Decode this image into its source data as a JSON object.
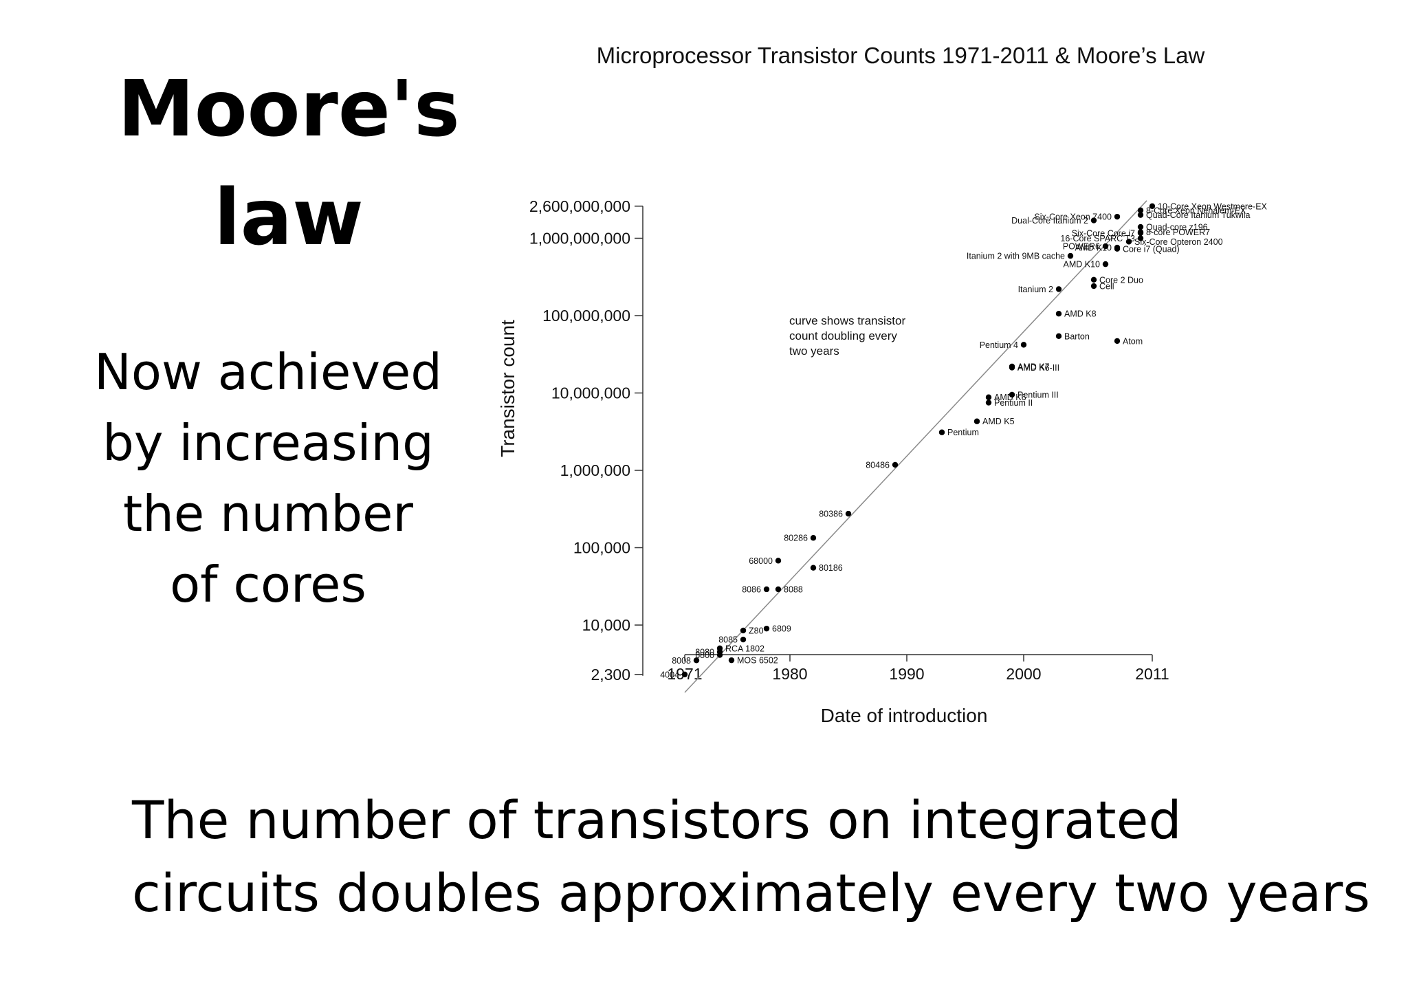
{
  "slide": {
    "title_line1": "Moore's",
    "title_line2": "law",
    "side_note_lines": [
      "Now achieved",
      "by increasing",
      "the number",
      "of cores"
    ],
    "bottom_lines": [
      "The number of transistors on integrated",
      "circuits doubles approximately every two years"
    ]
  },
  "colors": {
    "point": "#000000",
    "trend": "#8a8a8a",
    "axis": "#333333"
  },
  "chart_data": {
    "type": "scatter",
    "title": "Microprocessor Transistor Counts 1971-2011 & Moore’s Law",
    "xlabel": "Date of introduction",
    "ylabel": "Transistor count",
    "y_scale": "log",
    "xlim": [
      1971,
      2011
    ],
    "ylim": [
      1000,
      2600000000
    ],
    "x_ticks": [
      1971,
      1980,
      1990,
      2000,
      2011
    ],
    "y_ticks": [
      {
        "value": 2300,
        "label": "2,300"
      },
      {
        "value": 10000,
        "label": "10,000"
      },
      {
        "value": 100000,
        "label": "100,000"
      },
      {
        "value": 1000000,
        "label": "1,000,000"
      },
      {
        "value": 10000000,
        "label": "10,000,000"
      },
      {
        "value": 100000000,
        "label": "100,000,000"
      },
      {
        "value": 1000000000,
        "label": "1,000,000,000"
      },
      {
        "value": 2600000000,
        "label": "2,600,000,000"
      }
    ],
    "trend_line": {
      "x": [
        1971,
        2011
      ],
      "y": [
        1650,
        2600000000
      ]
    },
    "annotation": [
      "curve shows transistor",
      "count doubling every",
      "two years"
    ],
    "points": [
      {
        "name": "4004",
        "x": 1971,
        "y": 2300,
        "label_side": "left"
      },
      {
        "name": "8008",
        "x": 1972,
        "y": 3500,
        "label_side": "left"
      },
      {
        "name": "8080",
        "x": 1974,
        "y": 4500,
        "label_side": "left"
      },
      {
        "name": "RCA 1802",
        "x": 1974,
        "y": 5000,
        "label_side": "right"
      },
      {
        "name": "6800",
        "x": 1974,
        "y": 4100,
        "label_side": "left"
      },
      {
        "name": "8085",
        "x": 1976,
        "y": 6500,
        "label_side": "left"
      },
      {
        "name": "MOS 6502",
        "x": 1975,
        "y": 3510,
        "label_side": "right"
      },
      {
        "name": "Z80",
        "x": 1976,
        "y": 8500,
        "label_side": "right"
      },
      {
        "name": "6809",
        "x": 1978,
        "y": 9000,
        "label_side": "right"
      },
      {
        "name": "8086",
        "x": 1978,
        "y": 29000,
        "label_side": "left"
      },
      {
        "name": "8088",
        "x": 1979,
        "y": 29000,
        "label_side": "right"
      },
      {
        "name": "68000",
        "x": 1979,
        "y": 68000,
        "label_side": "left"
      },
      {
        "name": "80186",
        "x": 1982,
        "y": 55000,
        "label_side": "right"
      },
      {
        "name": "80286",
        "x": 1982,
        "y": 134000,
        "label_side": "left"
      },
      {
        "name": "80386",
        "x": 1985,
        "y": 275000,
        "label_side": "left"
      },
      {
        "name": "80486",
        "x": 1989,
        "y": 1180000,
        "label_side": "left"
      },
      {
        "name": "Pentium",
        "x": 1993,
        "y": 3100000,
        "label_side": "right"
      },
      {
        "name": "AMD K5",
        "x": 1996,
        "y": 4300000,
        "label_side": "right"
      },
      {
        "name": "Pentium II",
        "x": 1997,
        "y": 7500000,
        "label_side": "right"
      },
      {
        "name": "AMD K6",
        "x": 1997,
        "y": 8800000,
        "label_side": "right"
      },
      {
        "name": "Pentium III",
        "x": 1999,
        "y": 9500000,
        "label_side": "right"
      },
      {
        "name": "AMD K6-III",
        "x": 1999,
        "y": 21300000,
        "label_side": "right"
      },
      {
        "name": "AMD K7",
        "x": 1999,
        "y": 22000000,
        "label_side": "right"
      },
      {
        "name": "Pentium 4",
        "x": 2000,
        "y": 42000000,
        "label_side": "left"
      },
      {
        "name": "Barton",
        "x": 2003,
        "y": 54300000,
        "label_side": "right"
      },
      {
        "name": "AMD K8",
        "x": 2003,
        "y": 105900000,
        "label_side": "right"
      },
      {
        "name": "Itanium 2",
        "x": 2003,
        "y": 220000000,
        "label_side": "left"
      },
      {
        "name": "Atom",
        "x": 2008,
        "y": 47000000,
        "label_side": "right"
      },
      {
        "name": "Cell",
        "x": 2006,
        "y": 241000000,
        "label_side": "right"
      },
      {
        "name": "Core 2 Duo",
        "x": 2006,
        "y": 291000000,
        "label_side": "right"
      },
      {
        "name": "AMD K10",
        "x": 2007,
        "y": 463000000,
        "label_side": "left"
      },
      {
        "name": "Itanium 2 with 9MB cache",
        "x": 2004,
        "y": 592000000,
        "label_side": "left"
      },
      {
        "name": "Core i7 (Quad)",
        "x": 2008,
        "y": 731000000,
        "label_side": "right"
      },
      {
        "name": "POWER6",
        "x": 2007,
        "y": 789000000,
        "label_side": "left"
      },
      {
        "name": "Six-Core Opteron 2400",
        "x": 2009,
        "y": 904000000,
        "label_side": "right"
      },
      {
        "name": "AMD K10",
        "x": 2008,
        "y": 758000000,
        "label_side": "left"
      },
      {
        "name": "Dual-Core Itanium 2",
        "x": 2006,
        "y": 1700000000,
        "label_side": "left"
      },
      {
        "name": "Six-Core Xeon 7400",
        "x": 2008,
        "y": 1900000000,
        "label_side": "left"
      },
      {
        "name": "8-Core Xeon Nehalem-EX",
        "x": 2010,
        "y": 2300000000,
        "label_side": "right"
      },
      {
        "name": "Quad-Core Itanium Tukwila",
        "x": 2010,
        "y": 2000000000,
        "label_side": "right"
      },
      {
        "name": "Quad-core z196",
        "x": 2010,
        "y": 1400000000,
        "label_side": "right"
      },
      {
        "name": "8-core POWER7",
        "x": 2010,
        "y": 1200000000,
        "label_side": "right"
      },
      {
        "name": "Six-Core Core i7",
        "x": 2010,
        "y": 1170000000,
        "label_side": "left"
      },
      {
        "name": "16-Core SPARC T3",
        "x": 2010,
        "y": 1000000000,
        "label_side": "left"
      },
      {
        "name": "10-Core Xeon Westmere-EX",
        "x": 2011,
        "y": 2600000000,
        "label_side": "right"
      }
    ]
  }
}
